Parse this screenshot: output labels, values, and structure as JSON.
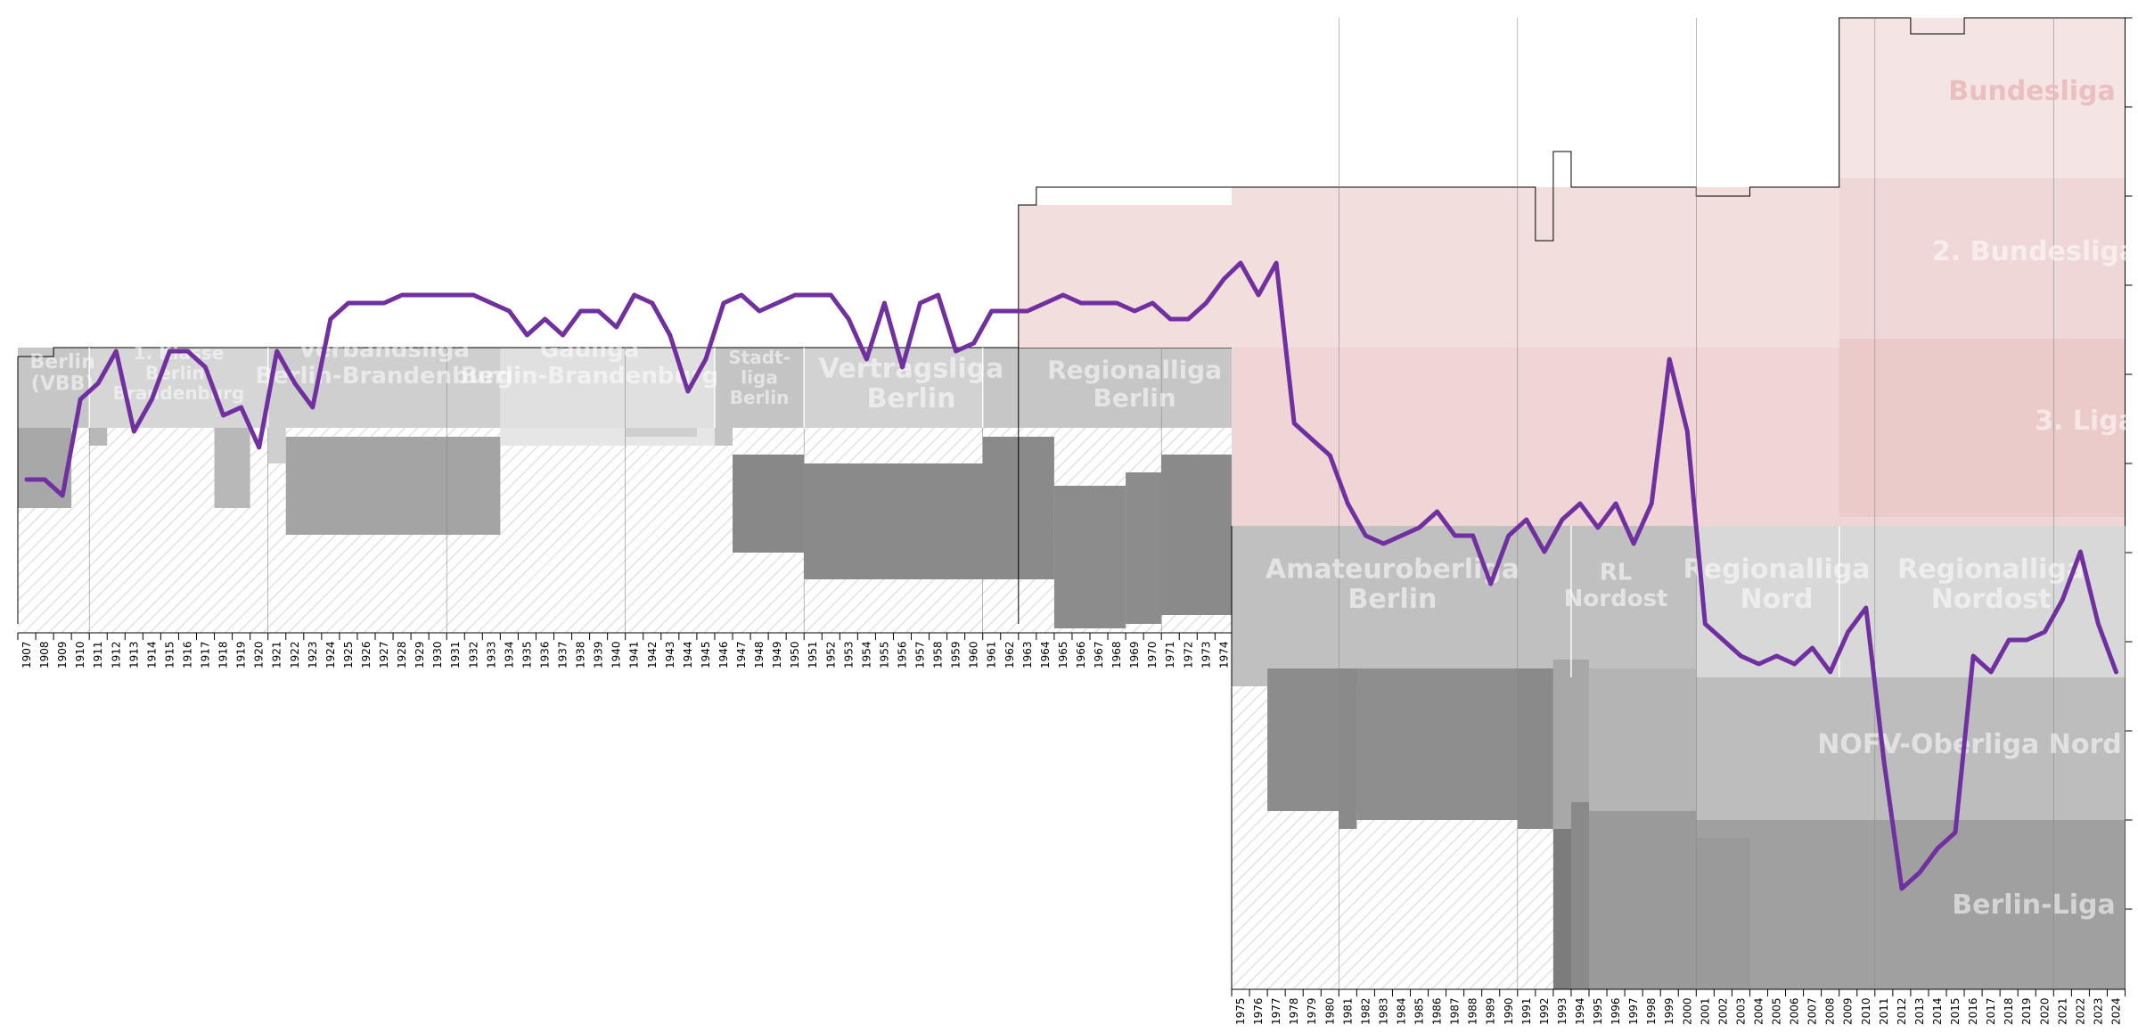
{
  "colors": {
    "line": "#7030a0",
    "pro_fill": "#f3dede",
    "tier_fill_light": "#dcdcdc",
    "tier_fill_mid": "#c0c0c0",
    "tier_fill_dark": "#8c8c8c",
    "hatch": "#e4e4e4",
    "frame": "#000000"
  },
  "chart_data": {
    "type": "line",
    "title": "",
    "xlabel": "",
    "ylabel": "",
    "x_ticks_era1": [
      1907,
      1908,
      1909,
      1910,
      1911,
      1912,
      1913,
      1914,
      1915,
      1916,
      1917,
      1918,
      1919,
      1920,
      1921,
      1922,
      1923,
      1924,
      1925,
      1926,
      1927,
      1928,
      1929,
      1930,
      1931,
      1932,
      1933,
      1934,
      1935,
      1936,
      1937,
      1938,
      1939,
      1940,
      1941,
      1942,
      1943,
      1944,
      1945,
      1946,
      1947,
      1948,
      1949,
      1950,
      1951,
      1952,
      1953,
      1954,
      1955,
      1956,
      1957,
      1958,
      1959,
      1960,
      1961,
      1962,
      1963,
      1964,
      1965,
      1966,
      1967,
      1968,
      1969,
      1970,
      1971,
      1972,
      1973,
      1974
    ],
    "x_ticks_era2": [
      1975,
      1976,
      1977,
      1978,
      1979,
      1980,
      1981,
      1982,
      1983,
      1984,
      1985,
      1986,
      1987,
      1988,
      1989,
      1990,
      1991,
      1992,
      1993,
      1994,
      1995,
      1996,
      1997,
      1998,
      1999,
      2000,
      2001,
      2002,
      2003,
      2004,
      2005,
      2006,
      2007,
      2008,
      2009,
      2010,
      2011,
      2012,
      2013,
      2014,
      2015,
      2016,
      2017,
      2018,
      2019,
      2020,
      2021,
      2022,
      2023,
      2024
    ],
    "series": [
      {
        "color": "#7030a0",
        "y_unit": "league position (top of chart = 1st tier, first place)",
        "points": [
          [
            1907,
            -5.1
          ],
          [
            1908,
            -5.1
          ],
          [
            1909,
            -5.2
          ],
          [
            1910,
            -4.6
          ],
          [
            1911,
            -4.5
          ],
          [
            1912,
            -4.3
          ],
          [
            1913,
            -4.8
          ],
          [
            1914,
            -4.6
          ],
          [
            1915,
            -4.3
          ],
          [
            1916,
            -4.3
          ],
          [
            1917,
            -4.4
          ],
          [
            1918,
            -4.7
          ],
          [
            1919,
            -4.65
          ],
          [
            1920,
            -4.9
          ],
          [
            1921,
            -4.3
          ],
          [
            1922,
            -4.5
          ],
          [
            1923,
            -4.65
          ],
          [
            1924,
            -4.1
          ],
          [
            1925,
            -4.0
          ],
          [
            1926,
            -4.0
          ],
          [
            1927,
            -4.0
          ],
          [
            1928,
            -3.95
          ],
          [
            1929,
            -3.95
          ],
          [
            1930,
            -3.95
          ],
          [
            1931,
            -3.95
          ],
          [
            1932,
            -3.95
          ],
          [
            1933,
            -4.0
          ],
          [
            1934,
            -4.05
          ],
          [
            1935,
            -4.2
          ],
          [
            1936,
            -4.1
          ],
          [
            1937,
            -4.2
          ],
          [
            1938,
            -4.05
          ],
          [
            1939,
            -4.05
          ],
          [
            1940,
            -4.15
          ],
          [
            1941,
            -3.95
          ],
          [
            1942,
            -4.0
          ],
          [
            1943,
            -4.2
          ],
          [
            1944,
            -4.55
          ],
          [
            1945,
            -4.35
          ],
          [
            1946,
            -4.0
          ],
          [
            1947,
            -3.95
          ],
          [
            1948,
            -4.05
          ],
          [
            1949,
            -4.0
          ],
          [
            1950,
            -3.95
          ],
          [
            1951,
            -3.95
          ],
          [
            1952,
            -3.95
          ],
          [
            1953,
            -4.1
          ],
          [
            1954,
            -4.35
          ],
          [
            1955,
            -4.0
          ],
          [
            1956,
            -4.4
          ],
          [
            1957,
            -4.0
          ],
          [
            1958,
            -3.95
          ],
          [
            1959,
            -4.3
          ],
          [
            1960,
            -4.25
          ],
          [
            1961,
            -4.05
          ],
          [
            1962,
            -4.05
          ],
          [
            1963,
            -4.05
          ],
          [
            1964,
            -4.0
          ],
          [
            1965,
            -3.95
          ],
          [
            1966,
            -4.0
          ],
          [
            1967,
            -4.0
          ],
          [
            1968,
            -4.0
          ],
          [
            1969,
            -4.05
          ],
          [
            1970,
            -4.0
          ],
          [
            1971,
            -4.1
          ],
          [
            1972,
            -4.1
          ],
          [
            1973,
            -4.0
          ],
          [
            1974,
            -3.85
          ],
          [
            1975,
            -3.75
          ],
          [
            1976,
            -3.95
          ],
          [
            1977,
            -3.75
          ],
          [
            1978,
            -4.75
          ],
          [
            1979,
            -4.85
          ],
          [
            1980,
            -4.95
          ],
          [
            1981,
            -5.25
          ],
          [
            1982,
            -5.45
          ],
          [
            1983,
            -5.5
          ],
          [
            1984,
            -5.45
          ],
          [
            1985,
            -5.4
          ],
          [
            1986,
            -5.3
          ],
          [
            1987,
            -5.45
          ],
          [
            1988,
            -5.45
          ],
          [
            1989,
            -5.75
          ],
          [
            1990,
            -5.45
          ],
          [
            1991,
            -5.35
          ],
          [
            1992,
            -5.55
          ],
          [
            1993,
            -5.35
          ],
          [
            1994,
            -5.25
          ],
          [
            1995,
            -5.4
          ],
          [
            1996,
            -5.25
          ],
          [
            1997,
            -5.5
          ],
          [
            1998,
            -5.25
          ],
          [
            1999,
            -4.35
          ],
          [
            2000,
            -4.8
          ],
          [
            2001,
            -6.0
          ],
          [
            2002,
            -6.1
          ],
          [
            2003,
            -6.2
          ],
          [
            2004,
            -6.25
          ],
          [
            2005,
            -6.2
          ],
          [
            2006,
            -6.25
          ],
          [
            2007,
            -6.15
          ],
          [
            2008,
            -6.3
          ],
          [
            2009,
            -6.05
          ],
          [
            2010,
            -5.9
          ],
          [
            2011,
            -6.85
          ],
          [
            2012,
            -7.65
          ],
          [
            2013,
            -7.55
          ],
          [
            2014,
            -7.4
          ],
          [
            2015,
            -7.3
          ],
          [
            2016,
            -6.2
          ],
          [
            2017,
            -6.3
          ],
          [
            2018,
            -6.1
          ],
          [
            2019,
            -6.1
          ],
          [
            2020,
            -6.05
          ],
          [
            2021,
            -5.85
          ],
          [
            2022,
            -5.55
          ],
          [
            2023,
            -6.0
          ],
          [
            2024,
            -6.3
          ]
        ]
      }
    ],
    "era1_tier_labels": [
      {
        "text": "Berlin\n(VBB)",
        "year": 1909
      },
      {
        "text": "1. Klasse\nBerlin-\nBrandenburg",
        "year": 1915.5
      },
      {
        "text": "Verbandsliga\nBerlin-Brandenburg",
        "year": 1927
      },
      {
        "text": "Gauliga\nBerlin-Brandenburg",
        "year": 1938.5
      },
      {
        "text": "Stadt-\nliga\nBerlin",
        "year": 1948
      },
      {
        "text": "Vertragsliga\nBerlin",
        "year": 1956.5
      },
      {
        "text": "Regionalliga\nBerlin",
        "year": 1969
      }
    ],
    "era2_tier_labels": [
      {
        "text": "Bundesliga",
        "tier": 1
      },
      {
        "text": "2. Bundesliga",
        "tier": 2
      },
      {
        "text": "3. Liga",
        "tier": 3
      },
      {
        "text": "Amateuroberliga\nBerlin",
        "year": 1983.5,
        "tier": 4
      },
      {
        "text": "RL\nNordost",
        "year": 1996,
        "tier": 4
      },
      {
        "text": "Regionalliga\nNord",
        "year": 2005,
        "tier": 4
      },
      {
        "text": "Regionalliga\nNordost",
        "year": 2017,
        "tier": 4
      },
      {
        "text": "NOFV-Oberliga Nord",
        "tier": 5
      },
      {
        "text": "Berlin-Liga",
        "tier": 6
      }
    ],
    "tiers_shown": 6,
    "grid": false
  }
}
